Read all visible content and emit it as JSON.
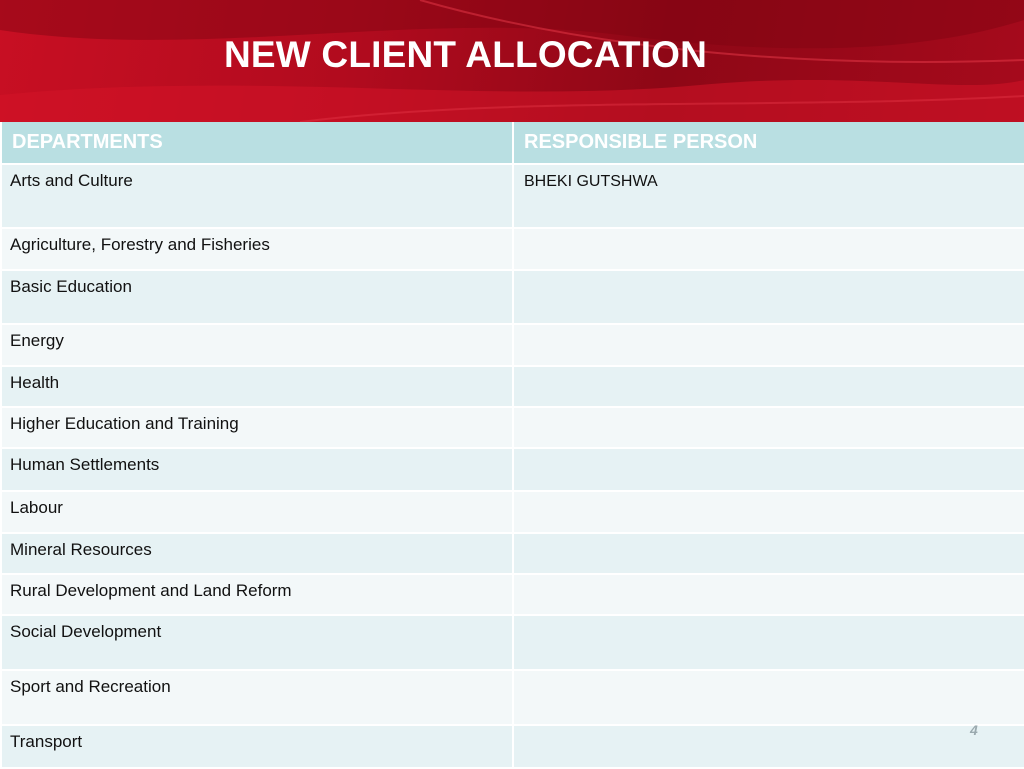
{
  "slide": {
    "title": "NEW CLIENT ALLOCATION",
    "page_number": "4"
  },
  "table": {
    "headers": [
      "DEPARTMENTS",
      "RESPONSIBLE PERSON"
    ],
    "rows": [
      {
        "department": "Arts and Culture",
        "person": "BHEKI GUTSHWA"
      },
      {
        "department": "Agriculture, Forestry and Fisheries",
        "person": ""
      },
      {
        "department": "Basic Education",
        "person": ""
      },
      {
        "department": "Energy",
        "person": ""
      },
      {
        "department": "Health",
        "person": ""
      },
      {
        "department": "Higher Education and Training",
        "person": ""
      },
      {
        "department": "Human Settlements",
        "person": ""
      },
      {
        "department": "Labour",
        "person": ""
      },
      {
        "department": "Mineral Resources",
        "person": ""
      },
      {
        "department": "Rural Development and Land Reform",
        "person": ""
      },
      {
        "department": "Social Development",
        "person": ""
      },
      {
        "department": "Sport and Recreation",
        "person": ""
      },
      {
        "department": "Transport",
        "person": ""
      }
    ]
  },
  "colors": {
    "banner_red": "#b10b1e",
    "header_fill": "#b9dfe2",
    "row_odd": "#e6f2f4",
    "row_even": "#f3f8f9"
  }
}
